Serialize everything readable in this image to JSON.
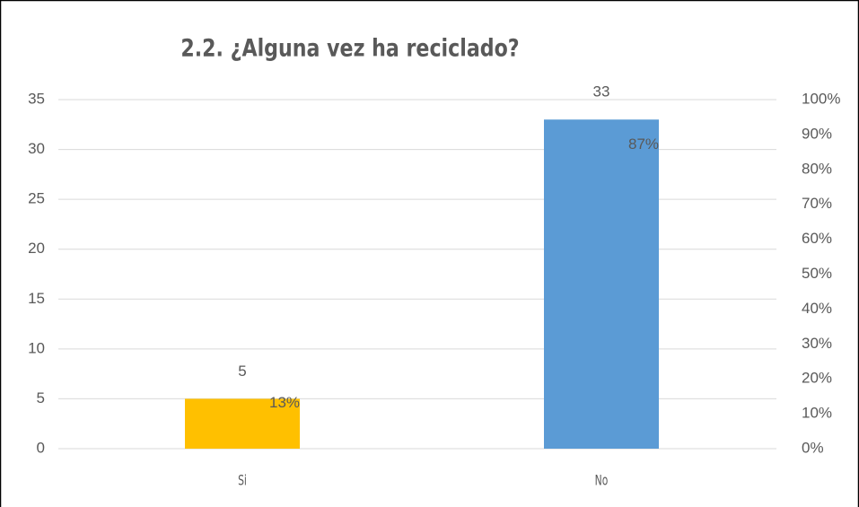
{
  "chart_data": {
    "type": "bar",
    "title": "2.2. ¿Alguna vez ha reciclado?",
    "categories": [
      "Si",
      "No"
    ],
    "series": [
      {
        "colors": [
          "#ffc000",
          "#5b9bd5"
        ],
        "values": [
          5,
          33
        ]
      },
      {
        "axis": "y2",
        "values": [
          13,
          87
        ],
        "value_labels": [
          "13%",
          "87%"
        ]
      }
    ],
    "ylim": [
      0,
      35
    ],
    "yticks": [
      0,
      5,
      10,
      15,
      20,
      25,
      30,
      35
    ],
    "y2lim": [
      0,
      100
    ],
    "y2ticks": [
      {
        "value": 0,
        "label": "0%"
      },
      {
        "value": 10,
        "label": "10%"
      },
      {
        "value": 20,
        "label": "20%"
      },
      {
        "value": 30,
        "label": "30%"
      },
      {
        "value": 40,
        "label": "40%"
      },
      {
        "value": 50,
        "label": "50%"
      },
      {
        "value": 60,
        "label": "60%"
      },
      {
        "value": 70,
        "label": "70%"
      },
      {
        "value": 80,
        "label": "80%"
      },
      {
        "value": 90,
        "label": "90%"
      },
      {
        "value": 100,
        "label": "100%"
      }
    ],
    "grid": true
  }
}
